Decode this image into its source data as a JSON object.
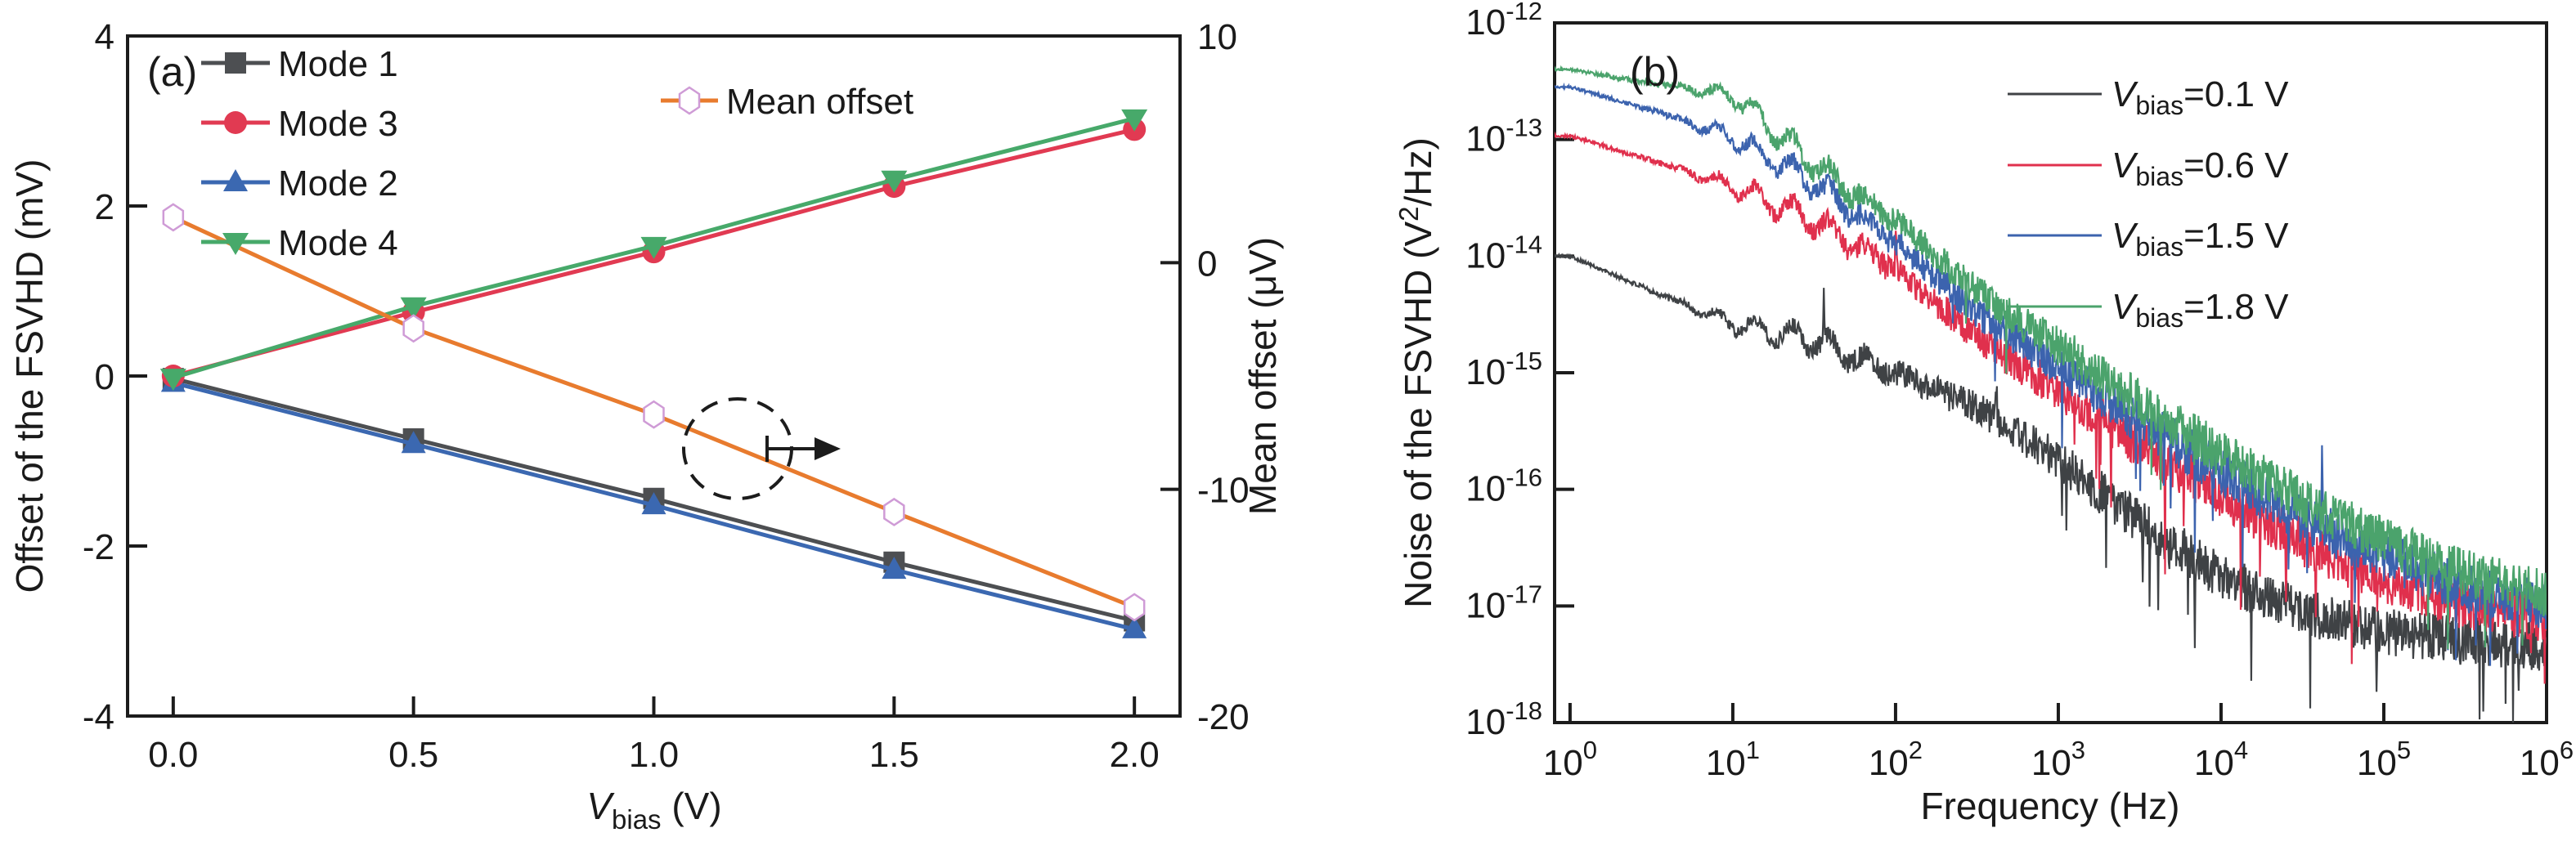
{
  "chart_data": [
    {
      "panel": "a",
      "type": "line",
      "panel_label": "(a)",
      "xlabel_parts": {
        "var": "V",
        "sub": "bias",
        "unit": " (V)"
      },
      "ylabel_left": "Offset of the FSVHD (mV)",
      "ylabel_right": "Mean offset (μV)",
      "x_values": [
        0,
        0.5,
        1.0,
        1.5,
        2.0
      ],
      "x_tick_labels": [
        "0.0",
        "0.5",
        "1.0",
        "1.5",
        "2.0"
      ],
      "xlim": [
        -0.095,
        2.095
      ],
      "left_axis": {
        "ylim": [
          -4,
          4
        ],
        "tick_values": [
          4,
          2,
          0,
          -2,
          -4
        ],
        "tick_labels": [
          "4",
          "2",
          "0",
          "-2",
          "-4"
        ]
      },
      "right_axis": {
        "ylim": [
          -20,
          10
        ],
        "tick_values": [
          10,
          0,
          -10,
          -20
        ],
        "tick_labels": [
          "10",
          "0",
          "-10",
          "-20"
        ]
      },
      "series": [
        {
          "name": "Mode 1",
          "axis": "left",
          "color": "#4d4f52",
          "marker": "square",
          "values": [
            -0.03,
            -0.74,
            -1.44,
            -2.19,
            -2.88
          ]
        },
        {
          "name": "Mode 3",
          "axis": "left",
          "color": "#e13a52",
          "marker": "circle",
          "values": [
            0.0,
            0.75,
            1.46,
            2.23,
            2.9
          ]
        },
        {
          "name": "Mode 2",
          "axis": "left",
          "color": "#3b68b1",
          "marker": "triangle-up",
          "values": [
            -0.08,
            -0.8,
            -1.52,
            -2.28,
            -2.98
          ]
        },
        {
          "name": "Mode 4",
          "axis": "left",
          "color": "#47a96a",
          "marker": "triangle-down",
          "values": [
            -0.02,
            0.82,
            1.53,
            2.31,
            3.03
          ]
        },
        {
          "name": "Mean offset",
          "axis": "right",
          "color": "#e87b2e",
          "marker": "hexagon-open",
          "marker_edge_color": "#cf9bd6",
          "values": [
            2.0,
            -2.9,
            -6.7,
            -11.0,
            -15.2
          ]
        }
      ],
      "annotation": {
        "shape": "dashed-circle",
        "arrow": "points-right-to-right-axis"
      }
    },
    {
      "panel": "b",
      "type": "line-loglog",
      "panel_label": "(b)",
      "xlabel": "Frequency (Hz)",
      "ylabel_parts": {
        "pre": "Noise of the FSVHD (V",
        "sup": "2",
        "post": "/Hz)"
      },
      "xlim_log": [
        -0.095,
        6
      ],
      "ylim_log": [
        -18,
        -12
      ],
      "x_tick_exponents": [
        0,
        1,
        2,
        3,
        4,
        5,
        6
      ],
      "y_tick_exponents": [
        -12,
        -13,
        -14,
        -15,
        -16,
        -17,
        -18
      ],
      "anchor_log_freq": [
        0,
        0.5,
        1,
        1.5,
        2,
        2.5,
        3,
        3.5,
        4,
        4.5,
        5,
        5.5,
        6
      ],
      "series": [
        {
          "label_parts": {
            "var": "V",
            "sub": "bias",
            "value": "=0.1 V"
          },
          "color": "#3f4245",
          "log_psd_anchors": [
            -14.0,
            -14.3,
            -14.58,
            -14.72,
            -15.0,
            -15.3,
            -15.75,
            -16.28,
            -16.75,
            -17.05,
            -17.22,
            -17.3,
            -17.35
          ],
          "spikes": [
            [
              1.56,
              0.45
            ],
            [
              2.62,
              0.35
            ]
          ],
          "seed": 101
        },
        {
          "label_parts": {
            "var": "V",
            "sub": "bias",
            "value": "=0.6 V"
          },
          "color": "#e0304d",
          "log_psd_anchors": [
            -12.97,
            -13.18,
            -13.4,
            -13.7,
            -14.1,
            -14.7,
            -15.15,
            -15.62,
            -16.05,
            -16.45,
            -16.78,
            -17.0,
            -17.12
          ],
          "spikes": [
            [
              2.0,
              0.3
            ]
          ],
          "seed": 202
        },
        {
          "label_parts": {
            "var": "V",
            "sub": "bias",
            "value": "=1.5 V"
          },
          "color": "#3c63ae",
          "log_psd_anchors": [
            -12.55,
            -12.75,
            -12.98,
            -13.38,
            -13.88,
            -14.48,
            -14.95,
            -15.42,
            -15.85,
            -16.25,
            -16.58,
            -16.85,
            -17.0
          ],
          "spikes": [
            [
              4.62,
              0.55
            ]
          ],
          "seed": 303
        },
        {
          "label_parts": {
            "var": "V",
            "sub": "bias",
            "value": "=1.8 V"
          },
          "color": "#4ba36c",
          "log_psd_anchors": [
            -12.4,
            -12.52,
            -12.62,
            -13.22,
            -13.7,
            -14.3,
            -14.78,
            -15.25,
            -15.7,
            -16.1,
            -16.45,
            -16.72,
            -16.9
          ],
          "spikes": [
            [
              3.1,
              0.35
            ]
          ],
          "seed": 404
        }
      ]
    }
  ]
}
